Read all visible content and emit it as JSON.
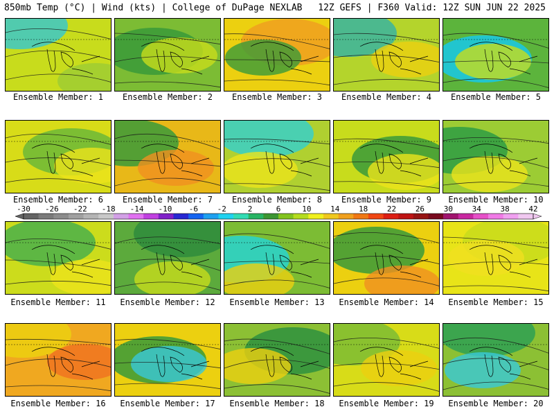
{
  "header": {
    "left": "850mb Temp (°C) | Wind (kts) | College of DuPage NEXLAB",
    "right": "12Z GEFS | F360 Valid: 12Z SUN JUN 22 2025"
  },
  "members": [
    {
      "label": "Ensemble Member: 1",
      "fill": "#c8dc1c",
      "blob": "#3cc8c8",
      "blob2": "#9ccc34"
    },
    {
      "label": "Ensemble Member: 2",
      "fill": "#7cbc34",
      "blob": "#3a9a3a",
      "blob2": "#c8dc1c"
    },
    {
      "label": "Ensemble Member: 3",
      "fill": "#ecd010",
      "blob": "#f0a020",
      "blob2": "#3a9a3a"
    },
    {
      "label": "Ensemble Member: 4",
      "fill": "#b4d42c",
      "blob": "#3ab4a0",
      "blob2": "#ecd010"
    },
    {
      "label": "Ensemble Member: 5",
      "fill": "#5cb43c",
      "blob": "#18c8e8",
      "blob2": "#c8dc1c"
    },
    {
      "label": "Ensemble Member: 6",
      "fill": "#d8dc18",
      "blob": "#6cb838",
      "blob2": "#ece41c"
    },
    {
      "label": "Ensemble Member: 7",
      "fill": "#e8b818",
      "blob": "#3a9a3a",
      "blob2": "#f09020"
    },
    {
      "label": "Ensemble Member: 8",
      "fill": "#b0d030",
      "blob": "#38d0c8",
      "blob2": "#ece41c"
    },
    {
      "label": "Ensemble Member: 9",
      "fill": "#c8dc1c",
      "blob": "#3a9a3a",
      "blob2": "#ece41c"
    },
    {
      "label": "Ensemble Member: 10",
      "fill": "#9ccc34",
      "blob": "#2e9c44",
      "blob2": "#ece41c"
    },
    {
      "label": "Ensemble Member: 11",
      "fill": "#ccdc1c",
      "blob": "#4ab04a",
      "blob2": "#ece41c"
    },
    {
      "label": "Ensemble Member: 12",
      "fill": "#5caa3c",
      "blob": "#2e8c3c",
      "blob2": "#c8dc1c"
    },
    {
      "label": "Ensemble Member: 13",
      "fill": "#7cbc34",
      "blob": "#28d4d0",
      "blob2": "#ecd010"
    },
    {
      "label": "Ensemble Member: 14",
      "fill": "#ecd010",
      "blob": "#3a9a3a",
      "blob2": "#f09020"
    },
    {
      "label": "Ensemble Member: 15",
      "fill": "#e8e418",
      "blob": "#c8dc1c",
      "blob2": "#f0e020"
    },
    {
      "label": "Ensemble Member: 16",
      "fill": "#f0a820",
      "blob": "#ecd010",
      "blob2": "#f07020"
    },
    {
      "label": "Ensemble Member: 17",
      "fill": "#ecd010",
      "blob": "#3a9a3a",
      "blob2": "#38c8d8"
    },
    {
      "label": "Ensemble Member: 18",
      "fill": "#8cc034",
      "blob": "#2e9040",
      "blob2": "#ecd010"
    },
    {
      "label": "Ensemble Member: 19",
      "fill": "#d8dc18",
      "blob": "#7cbc34",
      "blob2": "#ecd010"
    },
    {
      "label": "Ensemble Member: 20",
      "fill": "#8cc034",
      "blob": "#2ea054",
      "blob2": "#38c8d8"
    }
  ],
  "colorbar": {
    "ticks": [
      "-30",
      "-26",
      "-22",
      "-18",
      "-14",
      "-10",
      "-6",
      "-2",
      "2",
      "6",
      "10",
      "14",
      "18",
      "22",
      "26",
      "30",
      "34",
      "38",
      "42"
    ],
    "colors": [
      "#646464",
      "#7a7a7a",
      "#8c8c8c",
      "#a0a0a0",
      "#b4b4b4",
      "#c8c8c8",
      "#d2a0e6",
      "#e070f0",
      "#c040e0",
      "#8020c8",
      "#2828d2",
      "#1464f0",
      "#1ea0f0",
      "#20d2f0",
      "#32dcb4",
      "#28b464",
      "#3c9632",
      "#82c31e",
      "#b4dc1e",
      "#f0f01e",
      "#f0c81e",
      "#f0a01e",
      "#f07814",
      "#f04614",
      "#dc1e14",
      "#be1414",
      "#961414",
      "#780a1e",
      "#a0146e",
      "#c828a0",
      "#e650c8",
      "#f07ae6",
      "#f0a0f0",
      "#f0c8f0"
    ]
  }
}
